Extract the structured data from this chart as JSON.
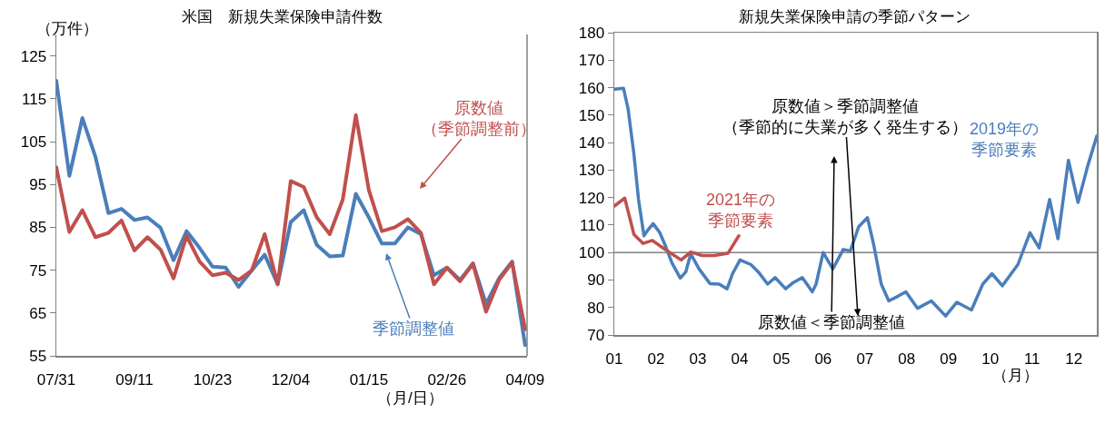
{
  "chart_data": [
    {
      "type": "line",
      "title": "米国　新規失業保険申請件数",
      "ylabel": "（万件）",
      "xlabel": "（月/日）",
      "categories": [
        "07/31",
        null,
        null,
        null,
        null,
        null,
        "09/11",
        null,
        null,
        null,
        null,
        null,
        "10/23",
        null,
        null,
        null,
        null,
        null,
        "12/04",
        null,
        null,
        null,
        null,
        null,
        "01/15",
        null,
        null,
        null,
        null,
        null,
        "02/26",
        null,
        null,
        null,
        null,
        null,
        "04/09"
      ],
      "series": [
        {
          "name": "季節調整値",
          "color": "#4a7ebb",
          "values": [
            119.2,
            97,
            110.5,
            101.5,
            88.3,
            89.3,
            86.7,
            87.3,
            84.9,
            77.3,
            84.1,
            80.2,
            75.8,
            75.6,
            71.1,
            74.9,
            78.6,
            71.7,
            86.2,
            89.0,
            80.9,
            78.2,
            78.4,
            92.8,
            87.3,
            81.2,
            81.2,
            85.0,
            83.4,
            73.8,
            75.6,
            72.7,
            76.6,
            67.1,
            73.1,
            77.0,
            57.5
          ]
        },
        {
          "name": "原数値（季節調整前）",
          "color": "#c0504d",
          "values": [
            99.0,
            83.9,
            89.0,
            82.7,
            83.7,
            86.6,
            79.6,
            82.7,
            79.8,
            73.1,
            83.0,
            77.0,
            73.8,
            74.4,
            72.7,
            74.9,
            83.4,
            71.7,
            95.8,
            94.4,
            87.3,
            83.4,
            91.5,
            111.2,
            93.7,
            84.1,
            85.0,
            86.9,
            83.7,
            71.7,
            75.6,
            72.4,
            76.5,
            65.3,
            72.7,
            76.8,
            61.2
          ]
        }
      ],
      "ylim": [
        55,
        130
      ],
      "yticks": [
        55,
        65,
        75,
        85,
        95,
        105,
        115,
        125
      ]
    },
    {
      "type": "line",
      "title": "新規失業保険申請の季節パターン",
      "xlabel": "（月）",
      "series": [
        {
          "name": "2019年の季節要素",
          "color": "#4a7ebb",
          "x": [
            1.0,
            1.22,
            1.33,
            1.47,
            1.58,
            1.71,
            1.81,
            1.93,
            2.09,
            2.23,
            2.38,
            2.58,
            2.71,
            2.83,
            3.03,
            3.29,
            3.51,
            3.7,
            3.83,
            4.01,
            4.27,
            4.45,
            4.67,
            4.85,
            5.1,
            5.28,
            5.5,
            5.74,
            5.83,
            6.0,
            6.23,
            6.48,
            6.65,
            6.85,
            7.06,
            7.21,
            7.39,
            7.57,
            7.79,
            7.98,
            8.26,
            8.59,
            8.93,
            9.2,
            9.55,
            9.82,
            10.04,
            10.29,
            10.66,
            10.95,
            11.17,
            11.42,
            11.62,
            11.87,
            12.1,
            12.33,
            12.55
          ],
          "values": [
            159.4,
            159.8,
            152.3,
            135.8,
            119.3,
            106.1,
            108.3,
            110.5,
            107.2,
            102.2,
            96.2,
            90.7,
            92.9,
            99.5,
            94.0,
            88.7,
            88.5,
            86.8,
            92.3,
            97.3,
            95.6,
            92.9,
            88.5,
            90.9,
            86.8,
            89.0,
            90.9,
            85.7,
            88.5,
            100.0,
            94.0,
            101.1,
            100.6,
            109.4,
            112.7,
            102.8,
            88.5,
            82.4,
            84.1,
            85.7,
            79.7,
            82.4,
            76.9,
            81.9,
            79.1,
            88.5,
            92.3,
            87.9,
            95.6,
            107.2,
            101.7,
            119.3,
            105.0,
            133.6,
            118.2,
            131.4,
            142.4
          ]
        },
        {
          "name": "2021年の季節要素",
          "color": "#c0504d",
          "x": [
            1.0,
            1.25,
            1.47,
            1.69,
            1.91,
            2.16,
            2.38,
            2.6,
            2.83,
            3.1,
            3.4,
            3.72,
            3.98
          ],
          "values": [
            116.9,
            119.8,
            106.6,
            103.3,
            104.4,
            101.7,
            99.5,
            97.3,
            100.2,
            98.9,
            98.9,
            99.7,
            106.1
          ]
        }
      ],
      "xlim": [
        1,
        12.55
      ],
      "xticks": [
        {
          "value": 1,
          "label": "01"
        },
        {
          "value": 2,
          "label": "02"
        },
        {
          "value": 3,
          "label": "03"
        },
        {
          "value": 4,
          "label": "04"
        },
        {
          "value": 5,
          "label": "05"
        },
        {
          "value": 6,
          "label": "06"
        },
        {
          "value": 7,
          "label": "07"
        },
        {
          "value": 8,
          "label": "08"
        },
        {
          "value": 9,
          "label": "09"
        },
        {
          "value": 10,
          "label": "10"
        },
        {
          "value": 11,
          "label": "11"
        },
        {
          "value": 12,
          "label": "12"
        }
      ],
      "ylim": [
        70,
        180
      ],
      "yticks": [
        70,
        80,
        90,
        100,
        110,
        120,
        130,
        140,
        150,
        160,
        170,
        180
      ],
      "ref_lines": [
        {
          "axis": "y",
          "value": 100,
          "color": "#808080"
        }
      ],
      "annotations": [
        "原数値＞季節調整値（季節的に失業が多く発生する）",
        "原数値＜季節調整値"
      ]
    }
  ]
}
